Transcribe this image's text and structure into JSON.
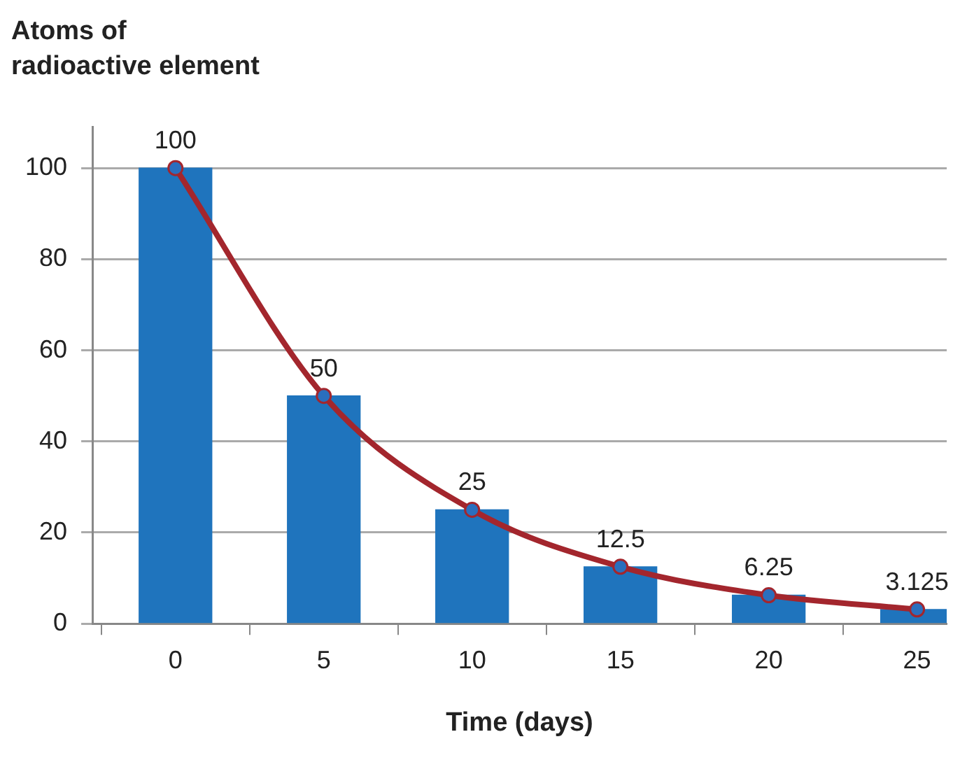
{
  "chart_data": {
    "type": "bar",
    "ylabel": "Atoms of\nradioactive element",
    "xlabel": "Time (days)",
    "x": [
      0,
      5,
      10,
      15,
      20,
      25
    ],
    "series": [
      {
        "color": "#1f74bd",
        "values": [
          100,
          50,
          25,
          12.5,
          6.25,
          3.125
        ],
        "value_labels": [
          "100",
          "50",
          "25",
          "12.5",
          "6.25",
          "3.125"
        ]
      },
      {
        "type": "line",
        "color": "#a3262d",
        "values": [
          100,
          50,
          25,
          12.5,
          6.25,
          3.125
        ]
      }
    ],
    "xlim": [
      -2.8,
      26
    ],
    "xticks": [
      0,
      5,
      10,
      15,
      20,
      25
    ],
    "ylim": [
      0,
      109
    ],
    "yticks": [
      0,
      20,
      40,
      60,
      80,
      100
    ],
    "grid": "y",
    "legend": false,
    "marker": "circle",
    "line_style": "solid"
  }
}
